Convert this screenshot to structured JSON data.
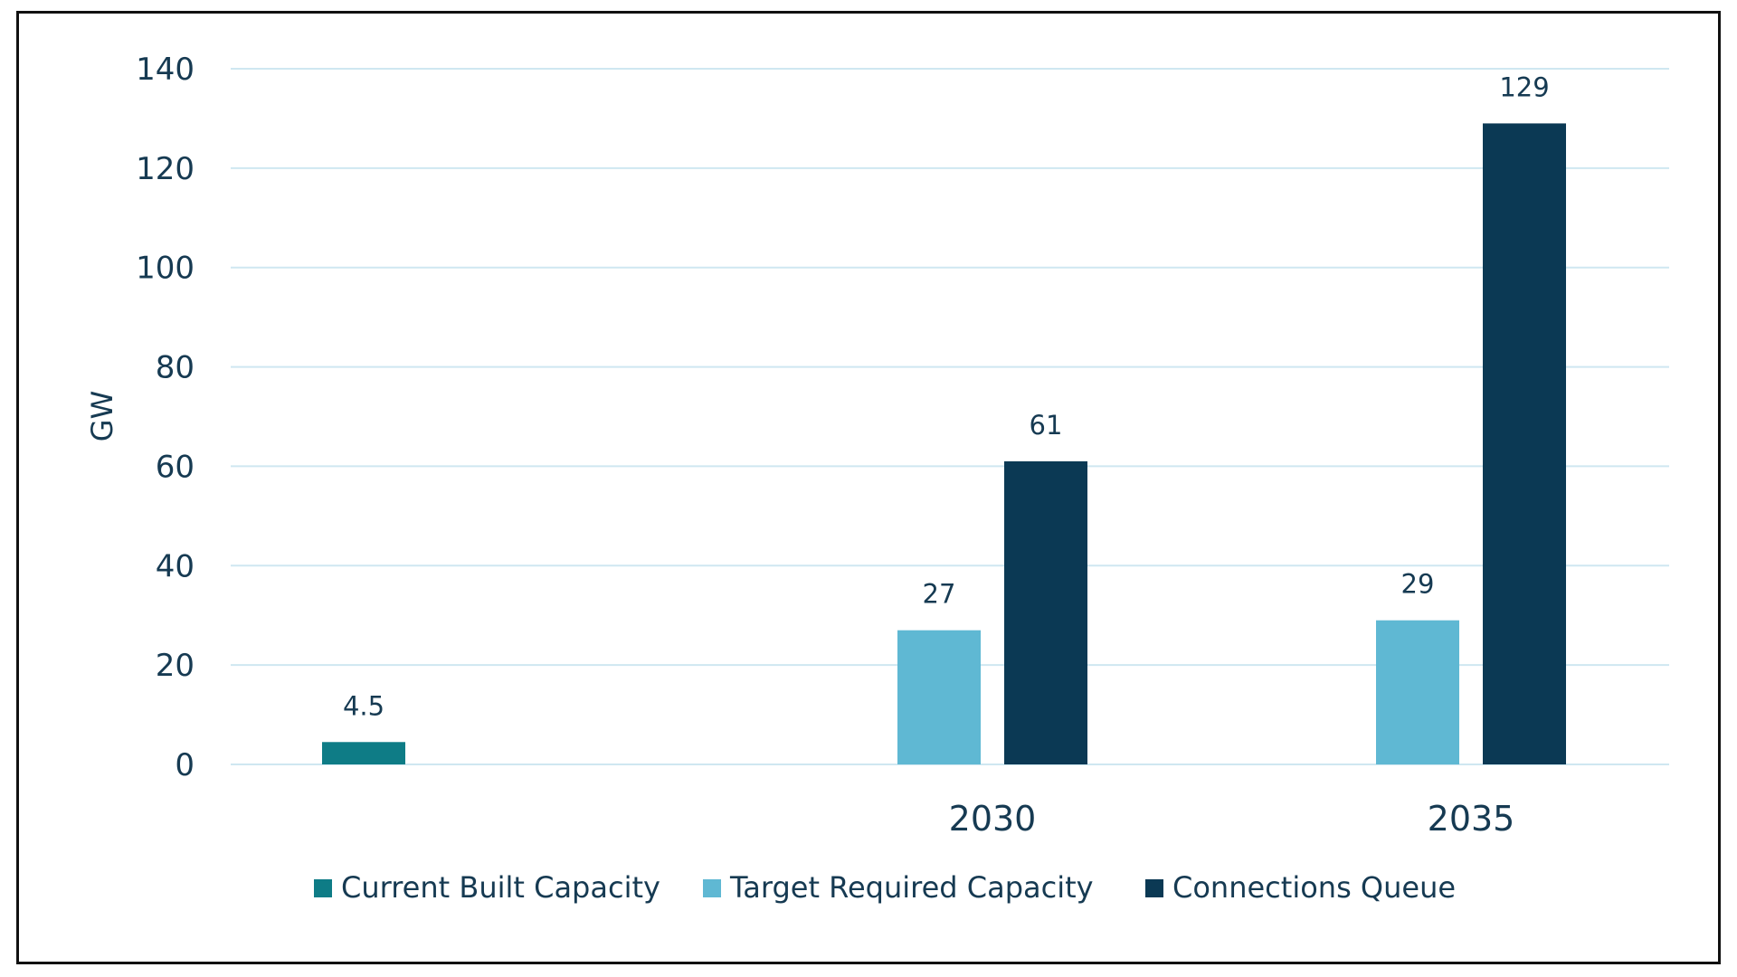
{
  "chart_data": {
    "type": "bar",
    "categories": [
      "",
      "2030",
      "2035"
    ],
    "ylabel": "GW",
    "ylim": [
      0,
      140
    ],
    "yticks": [
      0,
      20,
      40,
      60,
      80,
      100,
      120,
      140
    ],
    "grid": true,
    "legend_position": "bottom",
    "series": [
      {
        "name": "Current Built Capacity",
        "color": "#0e7c86",
        "values": [
          4.5,
          null,
          null
        ],
        "labels": [
          "4.5",
          null,
          null
        ]
      },
      {
        "name": "Target Required Capacity",
        "color": "#5fb8d3",
        "values": [
          null,
          27,
          29
        ],
        "labels": [
          null,
          "27",
          "29"
        ]
      },
      {
        "name": "Connections Queue",
        "color": "#0b3954",
        "values": [
          null,
          61,
          129
        ],
        "labels": [
          null,
          "61",
          "129"
        ]
      }
    ],
    "gridline_color": "#cfe7f1"
  }
}
